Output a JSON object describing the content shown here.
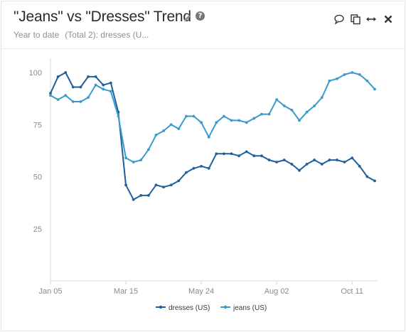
{
  "header": {
    "title": "\"Jeans\" vs \"Dresses\" Trend",
    "subtitle_range": "Year to date",
    "subtitle_total": "(Total 2): dresses (U..."
  },
  "icons": {
    "edit": "pencil-icon",
    "help": "question-icon",
    "comment": "comment-icon",
    "copy": "copy-icon",
    "expand": "expand-horizontal-icon",
    "close": "close-icon"
  },
  "colors": {
    "dresses": "#1f5f9c",
    "jeans": "#3a9bcb",
    "grid_axis": "#d9d9d9",
    "tick_text": "#8a8a8a"
  },
  "chart_data": {
    "type": "line",
    "x_ticks": [
      "Jan 05",
      "Mar 15",
      "May 24",
      "Aug 02",
      "Oct 11"
    ],
    "y_ticks": [
      25,
      50,
      75,
      100
    ],
    "ylim": [
      0,
      100
    ],
    "x_tick_positions_weeks": [
      0,
      10,
      20,
      30,
      40
    ],
    "series": [
      {
        "name": "dresses (US)",
        "values": [
          90,
          98,
          100,
          93,
          93,
          98,
          98,
          94,
          95,
          81,
          46,
          39,
          41,
          41,
          46,
          45,
          46,
          48,
          52,
          54,
          55,
          54,
          61,
          61,
          61,
          60,
          62,
          60,
          60,
          58,
          57,
          58,
          56,
          53,
          56,
          58,
          56,
          58,
          58,
          57,
          59,
          55,
          50,
          48
        ]
      },
      {
        "name": "jeans (US)",
        "values": [
          89,
          87,
          89,
          86,
          86,
          88,
          94,
          92,
          91,
          79,
          59,
          57,
          58,
          63,
          70,
          72,
          75,
          73,
          79,
          79,
          76,
          69,
          76,
          79,
          77,
          77,
          76,
          78,
          80,
          80,
          87,
          84,
          82,
          77,
          81,
          84,
          88,
          96,
          97,
          99,
          100,
          99,
          96,
          92
        ]
      }
    ],
    "legend": [
      "dresses (US)",
      "jeans (US)"
    ],
    "legend_position": "bottom"
  }
}
